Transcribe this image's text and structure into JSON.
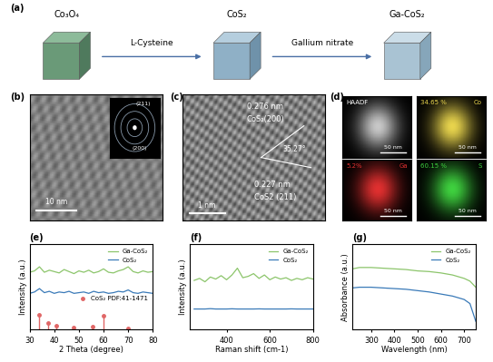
{
  "panels": {
    "a": {
      "label": "(a)",
      "steps": [
        "Co₃O₄",
        "CoS₂",
        "Ga-CoS₂"
      ],
      "reagents": [
        "L-Cysteine",
        "Gallium nitrate"
      ]
    },
    "b": {
      "label": "(b)",
      "scale_bar": "10 nm",
      "inset_rings": [
        "(211)",
        "(200)"
      ]
    },
    "c": {
      "label": "(c)",
      "spacing_top": "0.276 nm",
      "plane_top": "CoS₂(200)",
      "angle": "35.27°",
      "spacing_bottom": "0.227 nm",
      "plane_bottom": "CoS2 (211)",
      "scale_bar": "1 nm"
    },
    "d": {
      "label": "(d)",
      "maps": [
        {
          "name": "HAADF",
          "fraction": null,
          "color": "#c8c8c8",
          "scale_bar": "50 nm"
        },
        {
          "name": "Co",
          "fraction": "34.65 %",
          "color": "#e8d44d",
          "scale_bar": "50 nm"
        },
        {
          "name": "Ga",
          "fraction": "5.2%",
          "color": "#e03030",
          "scale_bar": "50 nm"
        },
        {
          "name": "S",
          "fraction": "60.15 %",
          "color": "#3fd13f",
          "scale_bar": "50 nm"
        }
      ]
    }
  },
  "chart_data": [
    {
      "type": "line",
      "title": "(e)",
      "x_label": "2 Theta (degree)",
      "y_label": "Intensity (a.u.)",
      "xlim": [
        30,
        80
      ],
      "xticks": [
        30,
        40,
        50,
        60,
        70,
        80
      ],
      "ylim": [
        0,
        125
      ],
      "tick_labels": "x",
      "legend": "upper right",
      "series": [
        {
          "name": "Ga-CoS₂",
          "color": "#8cc56b",
          "x": [
            30,
            32,
            34,
            36,
            38,
            40,
            42,
            44,
            46,
            48,
            50,
            52,
            54,
            56,
            58,
            60,
            62,
            64,
            66,
            68,
            70,
            72,
            74,
            76,
            78,
            80
          ],
          "values": [
            84,
            86,
            92,
            84,
            87,
            85,
            83,
            88,
            85,
            82,
            86,
            84,
            87,
            83,
            85,
            89,
            84,
            83,
            86,
            88,
            92,
            85,
            83,
            86,
            84,
            85
          ]
        },
        {
          "name": "CoS₂",
          "color": "#3a7ab8",
          "x": [
            30,
            32,
            34,
            36,
            38,
            40,
            42,
            44,
            46,
            48,
            50,
            52,
            54,
            56,
            58,
            60,
            62,
            64,
            66,
            68,
            70,
            72,
            74,
            76,
            78,
            80
          ],
          "values": [
            53,
            55,
            60,
            54,
            56,
            53,
            55,
            54,
            56,
            53,
            54,
            55,
            53,
            56,
            54,
            55,
            53,
            54,
            56,
            55,
            58,
            54,
            53,
            55,
            54,
            53
          ]
        },
        {
          "name": "CoS₂ PDF:41-1471",
          "type": "stem",
          "color": "#e06666",
          "marker": "o",
          "x": [
            34,
            37.5,
            41,
            48,
            55.5,
            60,
            70
          ],
          "values": [
            22,
            10,
            5,
            3,
            4,
            20,
            2
          ]
        }
      ]
    },
    {
      "type": "line",
      "title": "(f)",
      "x_label": "Raman shift (cm-1)",
      "y_label": "Intensity (a.u.)",
      "xlim": [
        230,
        800
      ],
      "xticks": [
        400,
        600,
        800
      ],
      "ylim": [
        0,
        125
      ],
      "tick_labels": "x",
      "legend": "upper right",
      "series": [
        {
          "name": "Ga-CoS₂",
          "color": "#8cc56b",
          "x": [
            250,
            275,
            300,
            325,
            350,
            375,
            400,
            425,
            450,
            475,
            500,
            525,
            550,
            575,
            600,
            625,
            650,
            675,
            700,
            725,
            750,
            775,
            800
          ],
          "values": [
            72,
            75,
            70,
            77,
            74,
            79,
            73,
            80,
            90,
            76,
            78,
            82,
            75,
            80,
            73,
            77,
            74,
            76,
            72,
            75,
            73,
            76,
            74
          ]
        },
        {
          "name": "CoS₂",
          "color": "#3a7ab8",
          "x": [
            250,
            275,
            300,
            325,
            350,
            375,
            400,
            425,
            450,
            475,
            500,
            525,
            550,
            575,
            600,
            625,
            650,
            675,
            700,
            725,
            750,
            775,
            800
          ],
          "values": [
            30,
            30,
            30,
            30.5,
            30,
            30,
            30,
            30.3,
            30,
            30,
            30,
            30,
            30.2,
            30,
            30,
            30,
            30,
            30,
            30.2,
            30,
            30,
            30,
            30
          ]
        }
      ]
    },
    {
      "type": "line",
      "title": "(g)",
      "x_label": "Wavelength (nm)",
      "y_label": "Absorbance (a.u.)",
      "xlim": [
        220,
        750
      ],
      "xticks": [
        300,
        400,
        500,
        600,
        700
      ],
      "ylim": [
        0,
        125
      ],
      "tick_labels": "x",
      "legend": "upper right",
      "series": [
        {
          "name": "Ga-CoS₂",
          "color": "#8cc56b",
          "x": [
            220,
            250,
            300,
            350,
            400,
            450,
            500,
            550,
            600,
            650,
            700,
            725,
            750
          ],
          "values": [
            89,
            91,
            91,
            90,
            89,
            88,
            86,
            85,
            83,
            80,
            75,
            71,
            62
          ]
        },
        {
          "name": "CoS₂",
          "color": "#3a7ab8",
          "x": [
            220,
            250,
            300,
            350,
            400,
            450,
            500,
            550,
            600,
            650,
            700,
            725,
            750
          ],
          "values": [
            61,
            62,
            62,
            61,
            60,
            59,
            57,
            55,
            52,
            49,
            44,
            38,
            12
          ]
        }
      ]
    }
  ]
}
